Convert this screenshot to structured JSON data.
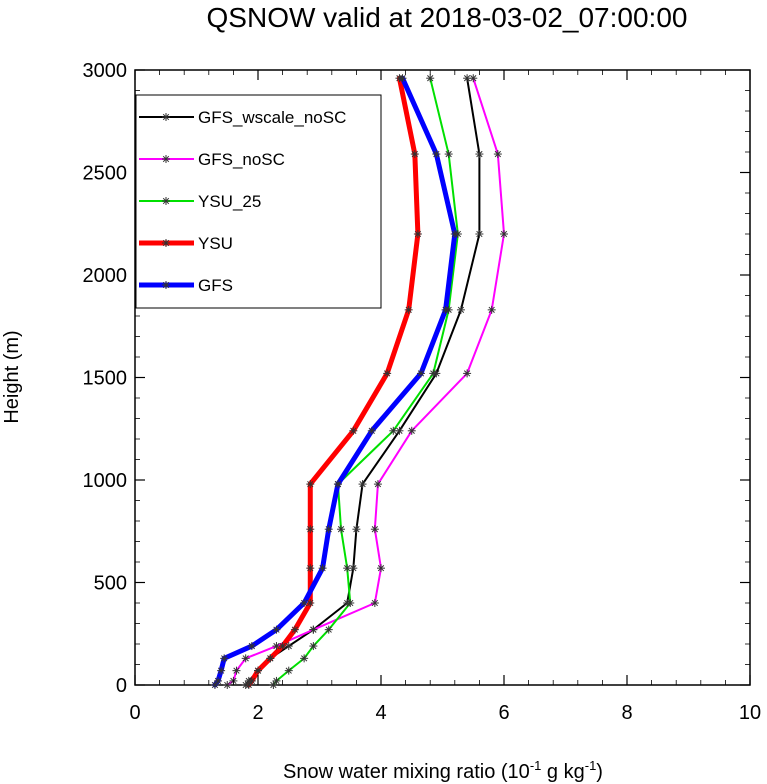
{
  "chart_data": {
    "type": "line",
    "title": "QSNOW valid at 2018-03-02_07:00:00",
    "xlabel": "Snow water mixing ratio (10",
    "xlabel_parts": {
      "base": "Snow water mixing ratio (10",
      "exp1": "-1",
      "mid": " g kg",
      "exp2": "-1",
      "end": ")"
    },
    "ylabel": "Height (m)",
    "xlim": [
      0,
      10
    ],
    "ylim": [
      0,
      3000
    ],
    "xticks": [
      "0",
      "2",
      "4",
      "6",
      "8",
      "10"
    ],
    "yticks": [
      "0",
      "500",
      "1000",
      "1500",
      "2000",
      "2500",
      "3000"
    ],
    "legend_position": "top-left",
    "grid": false,
    "series": [
      {
        "name": "GFS_wscale_noSC",
        "color": "#000000",
        "width": 2,
        "points": [
          [
            1.8,
            0
          ],
          [
            1.85,
            20
          ],
          [
            2.0,
            70
          ],
          [
            2.2,
            130
          ],
          [
            2.5,
            190
          ],
          [
            2.9,
            270
          ],
          [
            3.45,
            400
          ],
          [
            3.55,
            570
          ],
          [
            3.6,
            760
          ],
          [
            3.7,
            980
          ],
          [
            4.3,
            1240
          ],
          [
            4.9,
            1520
          ],
          [
            5.3,
            1830
          ],
          [
            5.6,
            2200
          ],
          [
            5.6,
            2590
          ],
          [
            5.4,
            2960
          ]
        ]
      },
      {
        "name": "GFS_noSC",
        "color": "#ff00ff",
        "width": 2,
        "points": [
          [
            1.5,
            0
          ],
          [
            1.6,
            20
          ],
          [
            1.65,
            70
          ],
          [
            1.8,
            130
          ],
          [
            2.3,
            190
          ],
          [
            2.9,
            270
          ],
          [
            3.9,
            400
          ],
          [
            4.0,
            570
          ],
          [
            3.9,
            760
          ],
          [
            3.95,
            980
          ],
          [
            4.5,
            1240
          ],
          [
            5.4,
            1520
          ],
          [
            5.8,
            1830
          ],
          [
            6.0,
            2200
          ],
          [
            5.9,
            2590
          ],
          [
            5.5,
            2960
          ]
        ]
      },
      {
        "name": "YSU_25",
        "color": "#00e000",
        "width": 2,
        "points": [
          [
            2.25,
            0
          ],
          [
            2.3,
            20
          ],
          [
            2.5,
            70
          ],
          [
            2.75,
            130
          ],
          [
            2.9,
            190
          ],
          [
            3.15,
            270
          ],
          [
            3.5,
            400
          ],
          [
            3.45,
            570
          ],
          [
            3.35,
            760
          ],
          [
            3.3,
            980
          ],
          [
            4.2,
            1240
          ],
          [
            4.85,
            1520
          ],
          [
            5.1,
            1830
          ],
          [
            5.25,
            2200
          ],
          [
            5.1,
            2590
          ],
          [
            4.8,
            2960
          ]
        ]
      },
      {
        "name": "YSU",
        "color": "#ff0000",
        "width": 5,
        "points": [
          [
            1.85,
            0
          ],
          [
            1.9,
            20
          ],
          [
            2.0,
            70
          ],
          [
            2.2,
            130
          ],
          [
            2.4,
            190
          ],
          [
            2.6,
            270
          ],
          [
            2.85,
            400
          ],
          [
            2.85,
            570
          ],
          [
            2.85,
            760
          ],
          [
            2.85,
            980
          ],
          [
            3.55,
            1240
          ],
          [
            4.1,
            1520
          ],
          [
            4.45,
            1830
          ],
          [
            4.6,
            2200
          ],
          [
            4.55,
            2590
          ],
          [
            4.3,
            2960
          ]
        ]
      },
      {
        "name": "GFS",
        "color": "#0000ff",
        "width": 5,
        "points": [
          [
            1.3,
            0
          ],
          [
            1.35,
            20
          ],
          [
            1.4,
            70
          ],
          [
            1.45,
            130
          ],
          [
            1.9,
            190
          ],
          [
            2.3,
            270
          ],
          [
            2.75,
            400
          ],
          [
            3.05,
            570
          ],
          [
            3.15,
            760
          ],
          [
            3.3,
            980
          ],
          [
            3.85,
            1240
          ],
          [
            4.65,
            1520
          ],
          [
            5.05,
            1830
          ],
          [
            5.2,
            2200
          ],
          [
            4.9,
            2590
          ],
          [
            4.35,
            2960
          ]
        ]
      }
    ]
  }
}
